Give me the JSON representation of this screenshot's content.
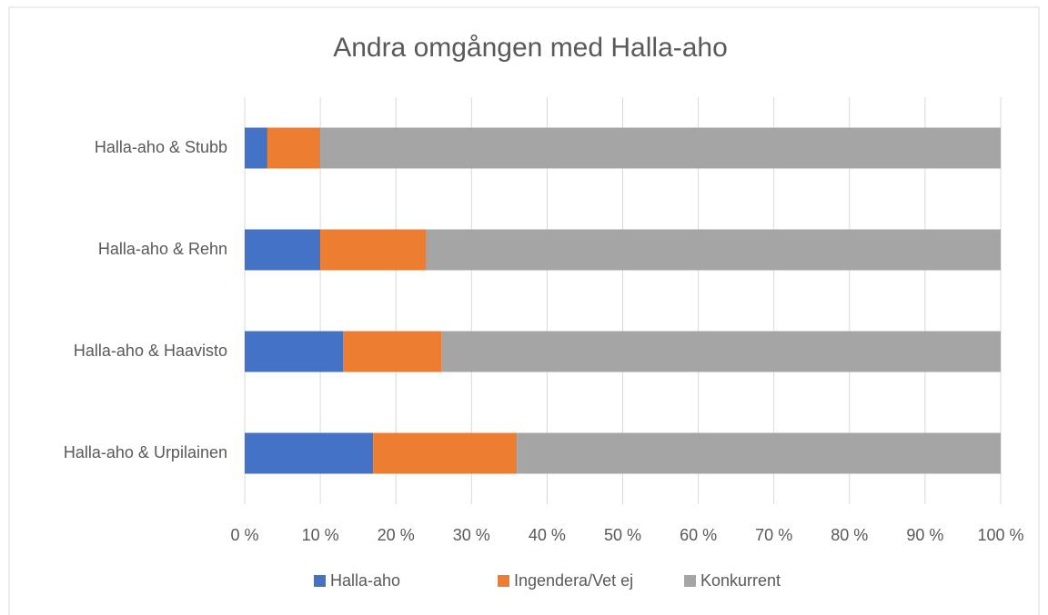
{
  "chart_data": {
    "type": "stacked_bar_horizontal",
    "title": "Andra omgången med Halla-aho",
    "categories": [
      "Halla-aho & Stubb",
      "Halla-aho & Rehn",
      "Halla-aho & Haavisto",
      "Halla-aho & Urpilainen"
    ],
    "series": [
      {
        "name": "Halla-aho",
        "color": "#4472c4",
        "values": [
          3,
          10,
          13,
          17
        ]
      },
      {
        "name": "Ingendera/Vet ej",
        "color": "#ed7d31",
        "values": [
          7,
          14,
          13,
          19
        ]
      },
      {
        "name": "Konkurrent",
        "color": "#a5a5a5",
        "values": [
          90,
          76,
          74,
          64
        ]
      }
    ],
    "xlim": [
      0,
      100
    ],
    "xticks": [
      {
        "value": 0,
        "label": "0 %"
      },
      {
        "value": 10,
        "label": "10 %"
      },
      {
        "value": 20,
        "label": "20 %"
      },
      {
        "value": 30,
        "label": "30 %"
      },
      {
        "value": 40,
        "label": "40 %"
      },
      {
        "value": 50,
        "label": "50 %"
      },
      {
        "value": 60,
        "label": "60 %"
      },
      {
        "value": 70,
        "label": "70 %"
      },
      {
        "value": 80,
        "label": "80 %"
      },
      {
        "value": 90,
        "label": "90 %"
      },
      {
        "value": 100,
        "label": "100 %"
      }
    ],
    "grid": true,
    "legend": "bottom"
  }
}
